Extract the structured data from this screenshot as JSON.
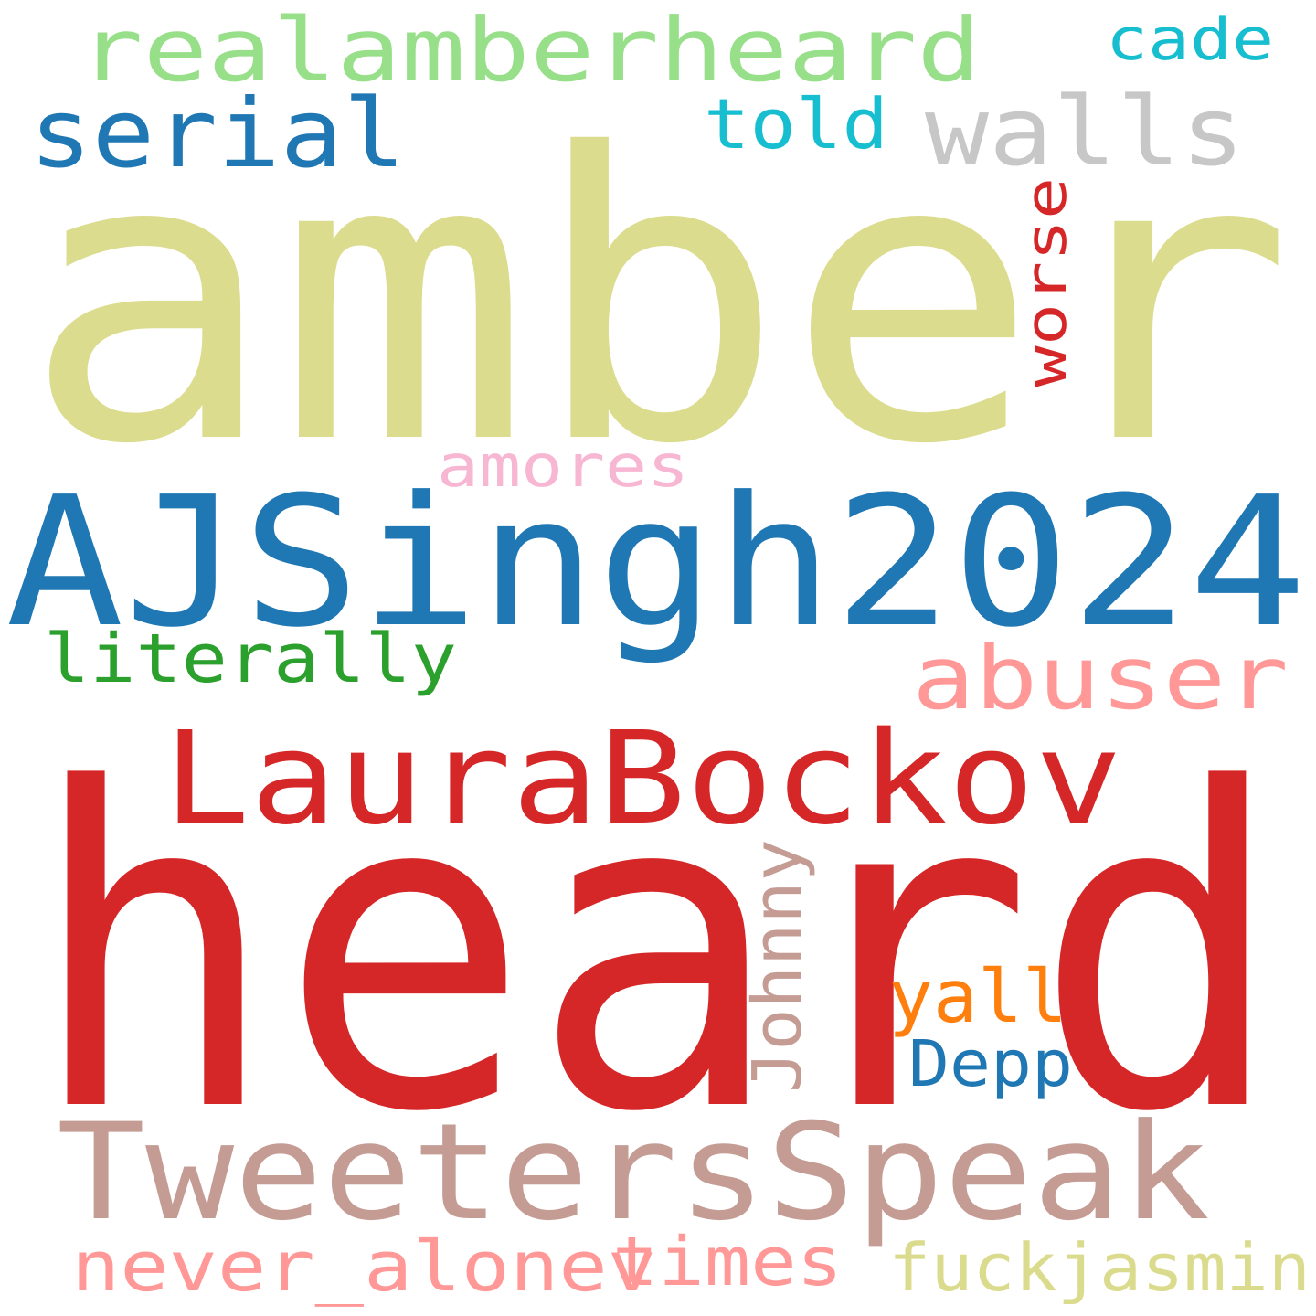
{
  "words": [
    {
      "key": "amber",
      "text": "amber",
      "color": "#dbdc8d",
      "vertical": false
    },
    {
      "key": "heard",
      "text": "heard",
      "color": "#d62728",
      "vertical": false
    },
    {
      "key": "ajsingh2024",
      "text": "AJSingh2024",
      "color": "#1f77b4",
      "vertical": false
    },
    {
      "key": "laurabockov",
      "text": "LauraBockov",
      "color": "#d62728",
      "vertical": false
    },
    {
      "key": "tweetersspeak",
      "text": "TweetersSpeak",
      "color": "#c49c94",
      "vertical": false
    },
    {
      "key": "realamberheard",
      "text": "realamberheard",
      "color": "#98df8a",
      "vertical": false
    },
    {
      "key": "walls",
      "text": "walls",
      "color": "#c7c7c7",
      "vertical": false
    },
    {
      "key": "serial",
      "text": "serial",
      "color": "#1f77b4",
      "vertical": false
    },
    {
      "key": "abuser",
      "text": "abuser",
      "color": "#ff9896",
      "vertical": false
    },
    {
      "key": "literally",
      "text": "literally",
      "color": "#2ca02c",
      "vertical": false
    },
    {
      "key": "fuckjasmin",
      "text": "fuckjasmin",
      "color": "#dbdb8d",
      "vertical": false
    },
    {
      "key": "never-alonev",
      "text": "never_alonev",
      "color": "#ff9896",
      "vertical": false
    },
    {
      "key": "times",
      "text": "times",
      "color": "#ff9896",
      "vertical": false
    },
    {
      "key": "told",
      "text": "told",
      "color": "#17becf",
      "vertical": false
    },
    {
      "key": "cade",
      "text": "cade",
      "color": "#17becf",
      "vertical": false
    },
    {
      "key": "amores",
      "text": "amores",
      "color": "#f7b6d2",
      "vertical": false
    },
    {
      "key": "yall",
      "text": "yall",
      "color": "#ff7f0e",
      "vertical": false
    },
    {
      "key": "depp",
      "text": "Depp",
      "color": "#1f77b4",
      "vertical": false
    },
    {
      "key": "johnny",
      "text": "Johnny",
      "color": "#c49c94",
      "vertical": true
    },
    {
      "key": "worse",
      "text": "worse",
      "color": "#d62728",
      "vertical": true
    }
  ]
}
